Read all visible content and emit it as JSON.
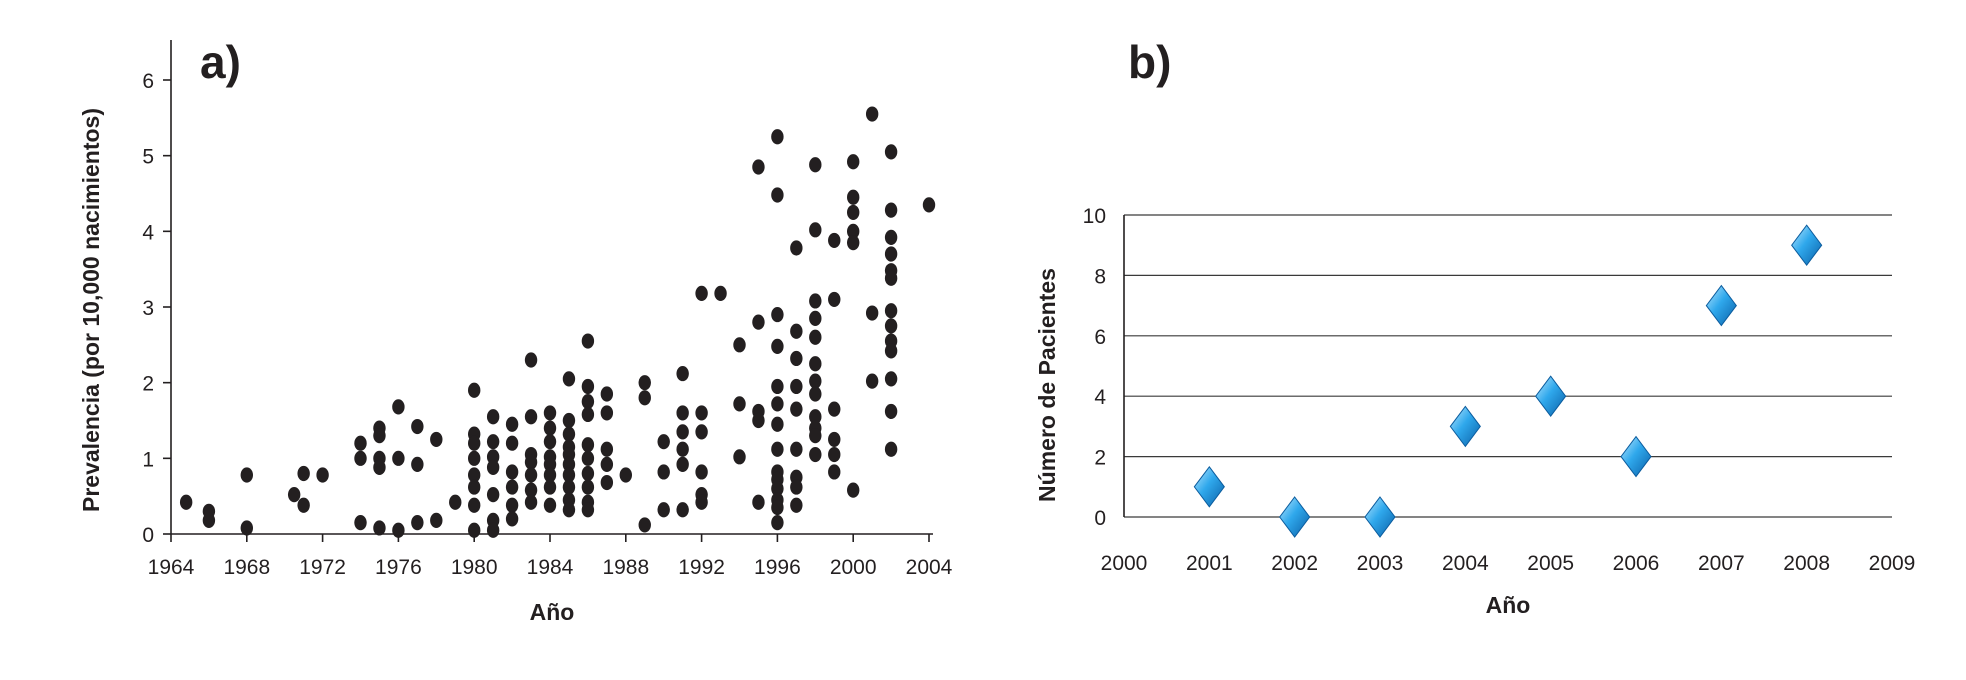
{
  "chart_data": [
    {
      "panel": "a)",
      "type": "scatter",
      "xlabel": "Año",
      "ylabel": "Prevalencia (por 10,000 nacimientos)",
      "xlim": [
        1964,
        2004
      ],
      "ylim": [
        0,
        6
      ],
      "xticks": [
        "1964",
        "1968",
        "1972",
        "1976",
        "1980",
        "1984",
        "1988",
        "1992",
        "1996",
        "2000",
        "2004"
      ],
      "yticks": [
        "0",
        "1",
        "2",
        "3",
        "4",
        "5",
        "6"
      ],
      "marker_color": "#231f20",
      "grid": false,
      "points": [
        [
          1964.8,
          0.42
        ],
        [
          1966,
          0.3
        ],
        [
          1966,
          0.18
        ],
        [
          1968,
          0.78
        ],
        [
          1968,
          0.08
        ],
        [
          1970.5,
          0.52
        ],
        [
          1971,
          0.8
        ],
        [
          1971,
          0.38
        ],
        [
          1972,
          0.78
        ],
        [
          1974,
          1.2
        ],
        [
          1974,
          1.0
        ],
        [
          1974,
          0.15
        ],
        [
          1975,
          1.4
        ],
        [
          1975,
          1.3
        ],
        [
          1975,
          1.0
        ],
        [
          1975,
          0.88
        ],
        [
          1975,
          0.08
        ],
        [
          1976,
          1.68
        ],
        [
          1976,
          1.0
        ],
        [
          1976,
          0.05
        ],
        [
          1977,
          1.42
        ],
        [
          1977,
          0.92
        ],
        [
          1977,
          0.15
        ],
        [
          1978,
          1.25
        ],
        [
          1978,
          0.18
        ],
        [
          1979,
          0.42
        ],
        [
          1980,
          1.9
        ],
        [
          1980,
          1.32
        ],
        [
          1980,
          1.2
        ],
        [
          1980,
          1.0
        ],
        [
          1980,
          0.78
        ],
        [
          1980,
          0.62
        ],
        [
          1980,
          0.38
        ],
        [
          1980,
          0.05
        ],
        [
          1981,
          1.55
        ],
        [
          1981,
          1.22
        ],
        [
          1981,
          1.02
        ],
        [
          1981,
          0.88
        ],
        [
          1981,
          0.52
        ],
        [
          1981,
          0.18
        ],
        [
          1981,
          0.05
        ],
        [
          1982,
          1.45
        ],
        [
          1982,
          1.2
        ],
        [
          1982,
          0.82
        ],
        [
          1982,
          0.62
        ],
        [
          1982,
          0.38
        ],
        [
          1982,
          0.2
        ],
        [
          1983,
          2.3
        ],
        [
          1983,
          1.55
        ],
        [
          1983,
          1.05
        ],
        [
          1983,
          0.95
        ],
        [
          1983,
          0.78
        ],
        [
          1983,
          0.58
        ],
        [
          1983,
          0.42
        ],
        [
          1984,
          1.6
        ],
        [
          1984,
          1.4
        ],
        [
          1984,
          1.22
        ],
        [
          1984,
          1.02
        ],
        [
          1984,
          0.92
        ],
        [
          1984,
          0.78
        ],
        [
          1984,
          0.62
        ],
        [
          1984,
          0.38
        ],
        [
          1985,
          2.05
        ],
        [
          1985,
          1.5
        ],
        [
          1985,
          1.32
        ],
        [
          1985,
          1.15
        ],
        [
          1985,
          1.05
        ],
        [
          1985,
          0.92
        ],
        [
          1985,
          0.78
        ],
        [
          1985,
          0.62
        ],
        [
          1985,
          0.45
        ],
        [
          1985,
          0.32
        ],
        [
          1986,
          2.55
        ],
        [
          1986,
          1.95
        ],
        [
          1986,
          1.75
        ],
        [
          1986,
          1.58
        ],
        [
          1986,
          1.18
        ],
        [
          1986,
          1.0
        ],
        [
          1986,
          0.8
        ],
        [
          1986,
          0.62
        ],
        [
          1986,
          0.42
        ],
        [
          1986,
          0.32
        ],
        [
          1987,
          1.85
        ],
        [
          1987,
          1.6
        ],
        [
          1987,
          1.12
        ],
        [
          1987,
          0.92
        ],
        [
          1987,
          0.68
        ],
        [
          1988,
          0.78
        ],
        [
          1989,
          2.0
        ],
        [
          1989,
          1.8
        ],
        [
          1989,
          0.12
        ],
        [
          1990,
          1.22
        ],
        [
          1990,
          0.82
        ],
        [
          1990,
          0.32
        ],
        [
          1991,
          2.12
        ],
        [
          1991,
          1.6
        ],
        [
          1991,
          1.35
        ],
        [
          1991,
          1.12
        ],
        [
          1991,
          0.92
        ],
        [
          1991,
          0.32
        ],
        [
          1992,
          3.18
        ],
        [
          1992,
          1.6
        ],
        [
          1992,
          1.35
        ],
        [
          1992,
          0.82
        ],
        [
          1992,
          0.52
        ],
        [
          1992,
          0.42
        ],
        [
          1993,
          3.18
        ],
        [
          1994,
          2.5
        ],
        [
          1994,
          1.72
        ],
        [
          1994,
          1.02
        ],
        [
          1995,
          4.85
        ],
        [
          1995,
          2.8
        ],
        [
          1995,
          1.62
        ],
        [
          1995,
          1.5
        ],
        [
          1995,
          0.42
        ],
        [
          1996,
          5.25
        ],
        [
          1996,
          4.48
        ],
        [
          1996,
          2.9
        ],
        [
          1996,
          2.48
        ],
        [
          1996,
          1.95
        ],
        [
          1996,
          1.72
        ],
        [
          1996,
          1.45
        ],
        [
          1996,
          1.12
        ],
        [
          1996,
          0.82
        ],
        [
          1996,
          0.72
        ],
        [
          1996,
          0.6
        ],
        [
          1996,
          0.45
        ],
        [
          1996,
          0.35
        ],
        [
          1996,
          0.15
        ],
        [
          1997,
          3.78
        ],
        [
          1997,
          2.68
        ],
        [
          1997,
          2.32
        ],
        [
          1997,
          1.95
        ],
        [
          1997,
          1.65
        ],
        [
          1997,
          1.12
        ],
        [
          1997,
          0.75
        ],
        [
          1997,
          0.62
        ],
        [
          1997,
          0.38
        ],
        [
          1998,
          4.88
        ],
        [
          1998,
          4.02
        ],
        [
          1998,
          3.08
        ],
        [
          1998,
          2.85
        ],
        [
          1998,
          2.6
        ],
        [
          1998,
          2.25
        ],
        [
          1998,
          2.02
        ],
        [
          1998,
          1.85
        ],
        [
          1998,
          1.55
        ],
        [
          1998,
          1.4
        ],
        [
          1998,
          1.3
        ],
        [
          1998,
          1.05
        ],
        [
          1999,
          3.88
        ],
        [
          1999,
          3.1
        ],
        [
          1999,
          1.65
        ],
        [
          1999,
          1.25
        ],
        [
          1999,
          1.05
        ],
        [
          1999,
          0.82
        ],
        [
          2000,
          4.92
        ],
        [
          2000,
          4.45
        ],
        [
          2000,
          4.25
        ],
        [
          2000,
          4.0
        ],
        [
          2000,
          3.85
        ],
        [
          2000,
          0.58
        ],
        [
          2001,
          5.55
        ],
        [
          2001,
          2.92
        ],
        [
          2001,
          2.02
        ],
        [
          2002,
          5.05
        ],
        [
          2002,
          4.28
        ],
        [
          2002,
          3.92
        ],
        [
          2002,
          3.7
        ],
        [
          2002,
          3.48
        ],
        [
          2002,
          3.38
        ],
        [
          2002,
          2.95
        ],
        [
          2002,
          2.75
        ],
        [
          2002,
          2.55
        ],
        [
          2002,
          2.42
        ],
        [
          2002,
          2.05
        ],
        [
          2002,
          1.62
        ],
        [
          2002,
          1.12
        ],
        [
          2004,
          4.35
        ]
      ]
    },
    {
      "panel": "b)",
      "type": "scatter",
      "xlabel": "Año",
      "ylabel": "Número de Pacientes",
      "xlim": [
        2000,
        2009
      ],
      "ylim": [
        0,
        10
      ],
      "xticks": [
        "2000",
        "2001",
        "2002",
        "2003",
        "2004",
        "2005",
        "2006",
        "2007",
        "2008",
        "2009"
      ],
      "yticks": [
        "0",
        "2",
        "4",
        "6",
        "8",
        "10"
      ],
      "marker": "diamond",
      "marker_color": "#1f8fd8",
      "grid": true,
      "x": [
        2001,
        2002,
        2003,
        2004,
        2005,
        2006,
        2007,
        2008
      ],
      "y": [
        1,
        0,
        0,
        3,
        4,
        2,
        7,
        9
      ]
    }
  ]
}
